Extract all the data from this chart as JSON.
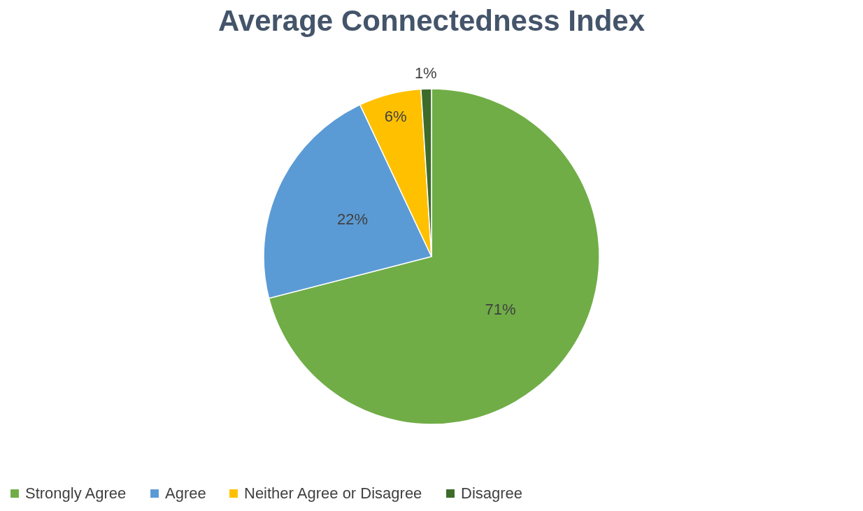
{
  "chart_data": {
    "type": "pie",
    "title": "Average Connectedness Index",
    "categories": [
      "Strongly Agree",
      "Agree",
      "Neither Agree or Disagree",
      "Disagree"
    ],
    "values": [
      71,
      22,
      6,
      1
    ],
    "colors": [
      "#70ad47",
      "#5b9bd5",
      "#ffc000",
      "#3d6b2a"
    ],
    "value_labels": [
      "71%",
      "22%",
      "6%",
      "1%"
    ],
    "legend": "bottom"
  }
}
